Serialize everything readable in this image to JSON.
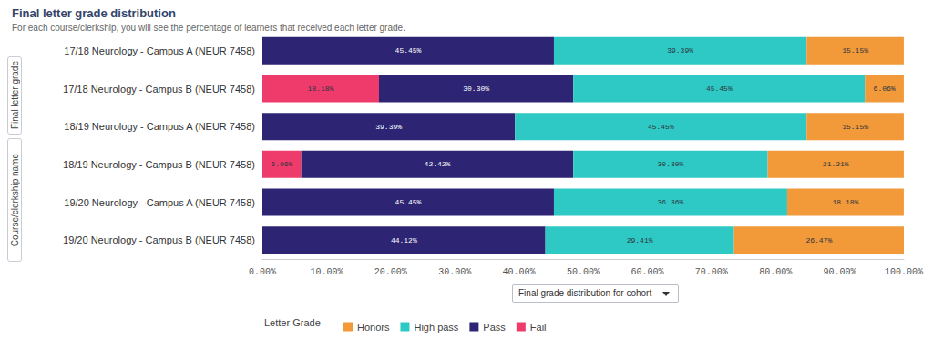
{
  "chart_data": {
    "type": "bar",
    "orientation": "horizontal",
    "stacked": true,
    "data_labels": true,
    "grid": false,
    "legend": "bottom",
    "title": "Final letter grade distribution",
    "subtitle": "For each course/clerkship, you will see the percentage of learners that received each letter grade.",
    "legend_title": "Letter Grade",
    "categories": [
      "17/18 Neurology - Campus A (NEUR 7458)",
      "17/18 Neurology - Campus B (NEUR 7458)",
      "18/19 Neurology - Campus A (NEUR 7458)",
      "18/19 Neurology - Campus B (NEUR 7458)",
      "19/20 Neurology - Campus A (NEUR 7458)",
      "19/20 Neurology - Campus B (NEUR 7458)"
    ],
    "series": [
      {
        "name": "Honors",
        "color": "#f2993a",
        "values": [
          15.15,
          6.06,
          15.15,
          21.21,
          18.18,
          26.47
        ],
        "value_labels": [
          "15.15%",
          "6.06%",
          "15.15%",
          "21.21%",
          "18.18%",
          "26.47%"
        ]
      },
      {
        "name": "High pass",
        "color": "#2ec9c4",
        "values": [
          39.39,
          45.45,
          45.45,
          30.3,
          36.36,
          29.41
        ],
        "value_labels": [
          "39.39%",
          "45.45%",
          "45.45%",
          "30.30%",
          "36.36%",
          "29.41%"
        ]
      },
      {
        "name": "Pass",
        "color": "#2d2473",
        "values": [
          45.45,
          30.3,
          39.39,
          42.42,
          45.45,
          44.12
        ],
        "value_labels": [
          "45.45%",
          "30.30%",
          "39.39%",
          "42.42%",
          "45.45%",
          "44.12%"
        ]
      },
      {
        "name": "Fail",
        "color": "#ee3b6b",
        "values": [
          null,
          18.18,
          null,
          6.06,
          null,
          null
        ],
        "value_labels": [
          null,
          "18.18%",
          null,
          "6.06%",
          null,
          null
        ]
      }
    ],
    "xlim": [
      0,
      100
    ],
    "xticks": [
      {
        "value": 0,
        "label": "0.00%"
      },
      {
        "value": 10,
        "label": "10.00%"
      },
      {
        "value": 20,
        "label": "20.00%"
      },
      {
        "value": 30,
        "label": "30.00%"
      },
      {
        "value": 40,
        "label": "40.00%"
      },
      {
        "value": 50,
        "label": "50.00%"
      },
      {
        "value": 60,
        "label": "60.00%"
      },
      {
        "value": 70,
        "label": "70.00%"
      },
      {
        "value": 80,
        "label": "80.00%"
      },
      {
        "value": 90,
        "label": "90.00%"
      },
      {
        "value": 100,
        "label": "100.00%"
      }
    ]
  },
  "controls": {
    "side_buttons": [
      "Final letter grade",
      "Course/clerkship name"
    ],
    "dropdown": "Final grade distribution for cohort"
  }
}
